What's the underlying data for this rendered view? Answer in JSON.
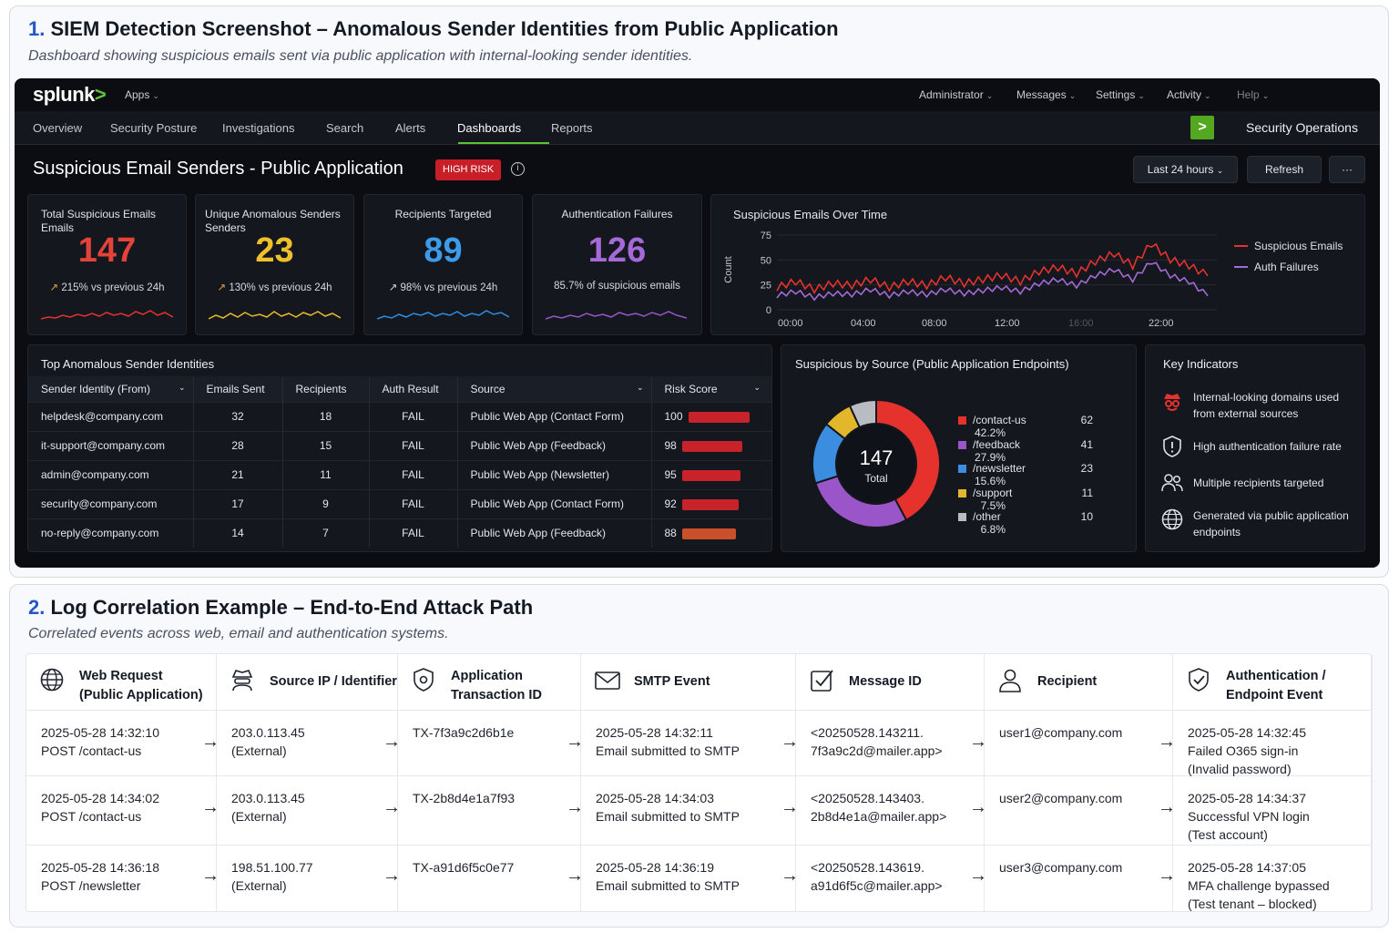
{
  "section1": {
    "num": "1.",
    "title": "SIEM Detection Screenshot – Anomalous Sender Identities from Public Application",
    "subtitle": "Dashboard showing suspicious emails sent via public application with internal-looking sender identities."
  },
  "topbar": {
    "logo": "splunk",
    "logo_suffix": ">",
    "apps": "Apps",
    "menus": [
      "Administrator",
      "Messages",
      "Settings",
      "Activity",
      "Help"
    ]
  },
  "nav": {
    "items": [
      "Overview",
      "Security Posture",
      "Investigations",
      "Search",
      "Alerts",
      "Dashboards",
      "Reports"
    ],
    "active": "Dashboards",
    "app_icon": ">",
    "app_name": "Security Operations"
  },
  "dashboard": {
    "title": "Suspicious Email Senders - Public Application",
    "badge": "HIGH RISK",
    "info_icon": "i",
    "time_range": "Last 24 hours",
    "refresh": "Refresh",
    "more": "···"
  },
  "kpis": [
    {
      "label": "Total Suspicious Emails",
      "label2": "Emails",
      "value": "147",
      "delta": "215% vs previous 24h",
      "color": "#e5423a"
    },
    {
      "label": "Unique Anomalous Senders",
      "label2": "Senders",
      "value": "23",
      "delta": "130% vs previous 24h",
      "color": "#f0c02c"
    },
    {
      "label": "Recipients Targeted",
      "label2": "",
      "value": "89",
      "delta": "98% vs previous 24h",
      "color": "#3d9be9"
    },
    {
      "label": "Authentication Failures",
      "label2": "",
      "value": "126",
      "delta": "85.7% of suspicious emails",
      "color": "#a569d8"
    }
  ],
  "timeseries": {
    "title": "Suspicious Emails Over Time",
    "ylabel": "Count",
    "yticks": [
      "75",
      "50",
      "25",
      "0"
    ],
    "xticks": [
      "00:00",
      "04:00",
      "08:00",
      "12:00",
      "16:00",
      "22:00"
    ],
    "legend": [
      "Suspicious Emails",
      "Auth Failures"
    ],
    "colors": [
      "#e5322d",
      "#a46ad6"
    ]
  },
  "chart_data": [
    {
      "type": "line",
      "title": "Suspicious Emails Over Time",
      "ylabel": "Count",
      "ylim": [
        0,
        75
      ],
      "x": [
        0,
        1,
        2,
        3,
        4,
        5,
        6,
        7,
        8,
        9,
        10,
        11,
        12,
        13,
        14,
        15,
        16,
        17,
        18,
        19,
        20,
        21,
        22,
        23
      ],
      "series": [
        {
          "name": "Suspicious Emails",
          "values": [
            22,
            28,
            20,
            26,
            24,
            30,
            22,
            28,
            24,
            32,
            26,
            30,
            34,
            28,
            38,
            42,
            36,
            48,
            56,
            44,
            66,
            50,
            44,
            34
          ]
        },
        {
          "name": "Auth Failures",
          "values": [
            14,
            18,
            12,
            16,
            15,
            20,
            14,
            18,
            15,
            20,
            16,
            19,
            22,
            18,
            26,
            30,
            24,
            34,
            40,
            30,
            48,
            34,
            28,
            14
          ]
        }
      ]
    },
    {
      "type": "pie",
      "title": "Suspicious by Source (Public Application Endpoints)",
      "total": "147",
      "total_label": "Total",
      "slices": [
        {
          "name": "/contact-us",
          "value": 62,
          "pct": "42.2%",
          "color": "#e5322d"
        },
        {
          "name": "/feedback",
          "value": 41,
          "pct": "27.9%",
          "color": "#9a55c8"
        },
        {
          "name": "/newsletter",
          "value": 23,
          "pct": "15.6%",
          "color": "#3b8de0"
        },
        {
          "name": "/support",
          "value": 11,
          "pct": "7.5%",
          "color": "#e3b72b"
        },
        {
          "name": "/other",
          "value": 10,
          "pct": "6.8%",
          "color": "#b9bcc3"
        }
      ]
    }
  ],
  "senders": {
    "title": "Top Anomalous Sender Identities",
    "headers": [
      "Sender Identity (From)",
      "Emails Sent",
      "Recipients",
      "Auth Result",
      "Source",
      "Risk Score"
    ],
    "rows": [
      {
        "sender": "helpdesk@company.com",
        "emails": "32",
        "recipients": "18",
        "auth": "FAIL",
        "source": "Public Web App (Contact Form)",
        "risk": "100",
        "risk_color": "#c8232a"
      },
      {
        "sender": "it-support@company.com",
        "emails": "28",
        "recipients": "15",
        "auth": "FAIL",
        "source": "Public Web App (Feedback)",
        "risk": "98",
        "risk_color": "#c8232a"
      },
      {
        "sender": "admin@company.com",
        "emails": "21",
        "recipients": "11",
        "auth": "FAIL",
        "source": "Public Web App (Newsletter)",
        "risk": "95",
        "risk_color": "#c8232a"
      },
      {
        "sender": "security@company.com",
        "emails": "17",
        "recipients": "9",
        "auth": "FAIL",
        "source": "Public Web App (Contact Form)",
        "risk": "92",
        "risk_color": "#c8232a"
      },
      {
        "sender": "no-reply@company.com",
        "emails": "14",
        "recipients": "7",
        "auth": "FAIL",
        "source": "Public Web App (Feedback)",
        "risk": "88",
        "risk_color": "#c9502a"
      }
    ]
  },
  "indicators": {
    "title": "Key Indicators",
    "items": [
      {
        "icon": "spy-icon",
        "text": "Internal-looking domains used from external sources"
      },
      {
        "icon": "shield-alert-icon",
        "text": "High authentication failure rate"
      },
      {
        "icon": "users-icon",
        "text": "Multiple recipients targeted"
      },
      {
        "icon": "globe-icon",
        "text": "Generated via public application endpoints"
      }
    ]
  },
  "section2": {
    "num": "2.",
    "title": "Log Correlation Example – End-to-End Attack Path",
    "subtitle": "Correlated events across web, email and authentication systems."
  },
  "log": {
    "columns": [
      {
        "icon": "globe-icon",
        "title": "Web Request",
        "title2": "(Public Application)"
      },
      {
        "icon": "hacker-icon",
        "title": "Source IP / Identifier",
        "title2": ""
      },
      {
        "icon": "shield-gear-icon",
        "title": "Application",
        "title2": "Transaction ID"
      },
      {
        "icon": "mail-icon",
        "title": "SMTP Event",
        "title2": ""
      },
      {
        "icon": "check-square-icon",
        "title": "Message ID",
        "title2": ""
      },
      {
        "icon": "user-icon",
        "title": "Recipient",
        "title2": ""
      },
      {
        "icon": "shield-check-icon",
        "title": "Authentication /",
        "title2": "Endpoint Event"
      }
    ],
    "rows": [
      [
        [
          "2025-05-28 14:32:10",
          "POST /contact-us"
        ],
        [
          "203.0.113.45",
          "(External)"
        ],
        [
          "TX-7f3a9c2d6b1e"
        ],
        [
          "2025-05-28 14:32:11",
          "Email submitted to SMTP"
        ],
        [
          "<20250528.143211.",
          "7f3a9c2d@mailer.app>"
        ],
        [
          "user1@company.com"
        ],
        [
          "2025-05-28 14:32:45",
          "Failed O365 sign-in",
          "(Invalid password)"
        ]
      ],
      [
        [
          "2025-05-28 14:34:02",
          "POST /contact-us"
        ],
        [
          "203.0.113.45",
          "(External)"
        ],
        [
          "TX-2b8d4e1a7f93"
        ],
        [
          "2025-05-28 14:34:03",
          "Email submitted to SMTP"
        ],
        [
          "<20250528.143403.",
          "2b8d4e1a@mailer.app>"
        ],
        [
          "user2@company.com"
        ],
        [
          "2025-05-28 14:34:37",
          "Successful VPN login",
          "(Test account)"
        ]
      ],
      [
        [
          "2025-05-28 14:36:18",
          "POST /newsletter"
        ],
        [
          "198.51.100.77",
          "(External)"
        ],
        [
          "TX-a91d6f5c0e77"
        ],
        [
          "2025-05-28 14:36:19",
          "Email submitted to SMTP"
        ],
        [
          "<20250528.143619.",
          "a91d6f5c@mailer.app>"
        ],
        [
          "user3@company.com"
        ],
        [
          "2025-05-28 14:37:05",
          "MFA challenge bypassed",
          "(Test tenant – blocked)"
        ]
      ]
    ],
    "arrow": "→"
  }
}
